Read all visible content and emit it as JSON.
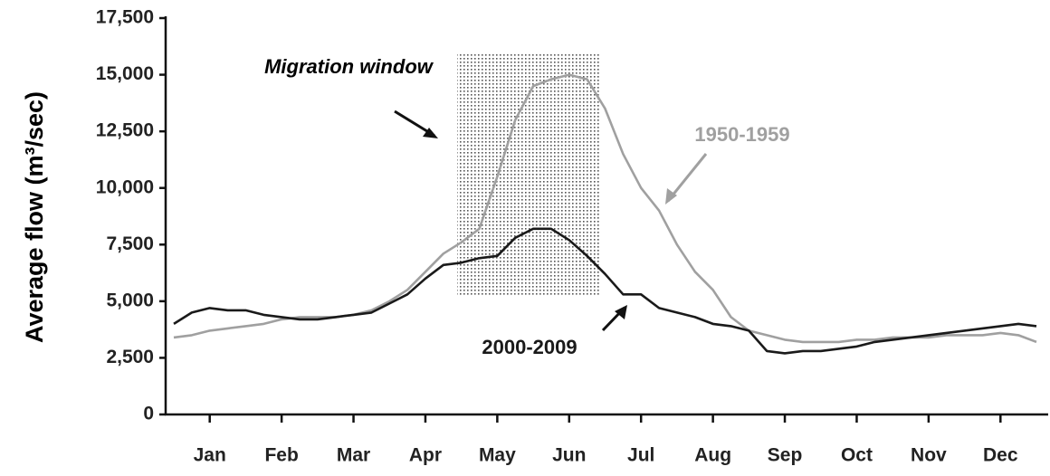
{
  "chart_data": {
    "type": "line",
    "y_label": "Average flow (m³/sec)",
    "annotation": "Migration window",
    "categories": [
      null,
      null,
      "Jan",
      null,
      null,
      null,
      "Feb",
      null,
      null,
      null,
      "Mar",
      null,
      null,
      null,
      "Apr",
      null,
      null,
      null,
      "May",
      null,
      null,
      null,
      "Jun",
      null,
      null,
      null,
      "Jul",
      null,
      null,
      null,
      "Aug",
      null,
      null,
      null,
      "Sep",
      null,
      null,
      null,
      "Oct",
      null,
      null,
      null,
      "Nov",
      null,
      null,
      null,
      "Dec",
      null,
      null
    ],
    "series": [
      {
        "name": "1950-1959",
        "color": "#a0a0a0",
        "values": [
          3400,
          3500,
          3700,
          3800,
          3900,
          4000,
          4200,
          4300,
          4300,
          4300,
          4400,
          4600,
          5000,
          5500,
          6300,
          7100,
          7600,
          8200,
          10500,
          13000,
          14500,
          14800,
          15000,
          14800,
          13500,
          11500,
          10000,
          9000,
          7500,
          6300,
          5500,
          4300,
          3700,
          3500,
          3300,
          3200,
          3200,
          3200,
          3300,
          3300,
          3400,
          3400,
          3400,
          3500,
          3500,
          3500,
          3600,
          3500,
          3200
        ]
      },
      {
        "name": "2000-2009",
        "color": "#1a1a1a",
        "values": [
          4000,
          4500,
          4700,
          4600,
          4600,
          4400,
          4300,
          4200,
          4200,
          4300,
          4400,
          4500,
          4900,
          5300,
          6000,
          6600,
          6700,
          6900,
          7000,
          7800,
          8200,
          8200,
          7700,
          7000,
          6200,
          5300,
          5300,
          4700,
          4500,
          4300,
          4000,
          3900,
          3700,
          2800,
          2700,
          2800,
          2800,
          2900,
          3000,
          3200,
          3300,
          3400,
          3500,
          3600,
          3700,
          3800,
          3900,
          4000,
          3900
        ]
      }
    ],
    "ylim": [
      0,
      17500
    ],
    "yticks": [
      0,
      {
        "value": 2500,
        "label": "2,500"
      },
      {
        "value": 5000,
        "label": "5,000"
      },
      {
        "value": 7500,
        "label": "7,500"
      },
      {
        "value": 10000,
        "label": "10,000"
      },
      {
        "value": 12500,
        "label": "12,500"
      },
      {
        "value": 15000,
        "label": "15,000"
      },
      {
        "value": 17500,
        "label": "17,500"
      }
    ],
    "grid": false
  }
}
